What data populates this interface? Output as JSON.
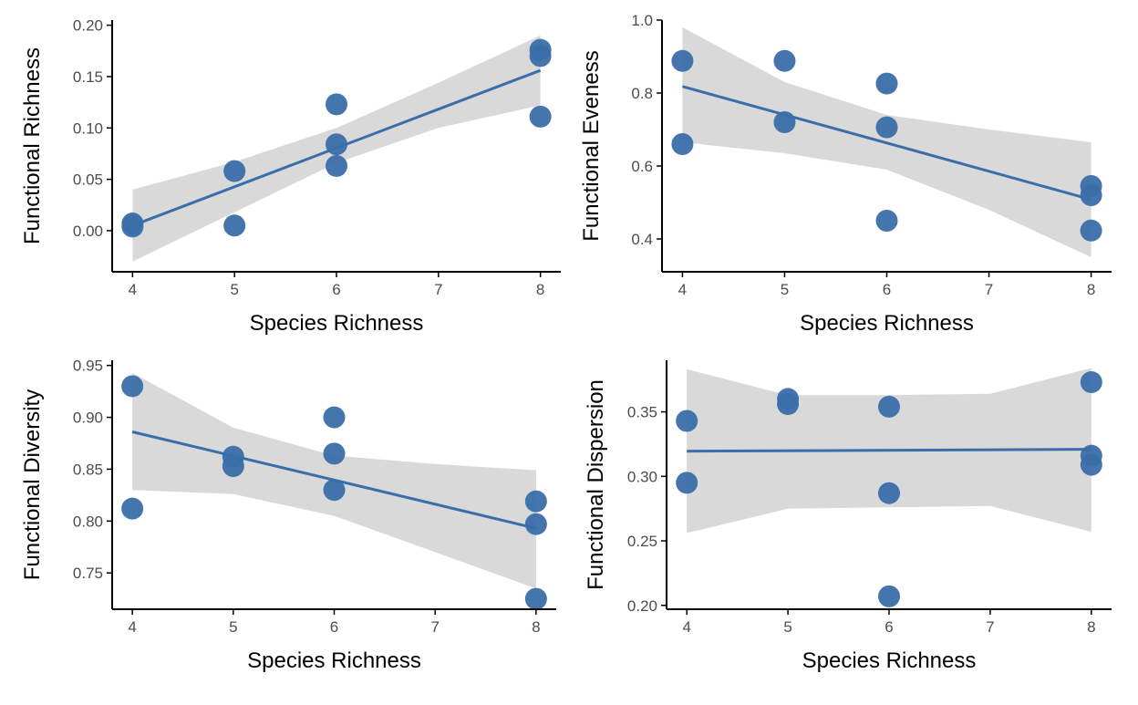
{
  "colors": {
    "point": "#3a6ea9",
    "line": "#3a6ea9",
    "band": "#d9d9d9",
    "axis": "#000000",
    "tick_label": "#4d4d4d"
  },
  "chart_data": [
    {
      "type": "scatter",
      "panel": "top-left",
      "xlabel": "Species Richness",
      "ylabel": "Functional Richness",
      "xlim": [
        3.8,
        8.2
      ],
      "ylim": [
        -0.04,
        0.205
      ],
      "x_ticks": [
        4,
        5,
        6,
        7,
        8
      ],
      "y_ticks": [
        0.0,
        0.05,
        0.1,
        0.15,
        0.2
      ],
      "y_tick_labels": [
        "0.00",
        "0.05",
        "0.10",
        "0.15",
        "0.20"
      ],
      "points": [
        {
          "x": 4,
          "y": 0.007
        },
        {
          "x": 4,
          "y": 0.004
        },
        {
          "x": 5,
          "y": 0.058
        },
        {
          "x": 5,
          "y": 0.005
        },
        {
          "x": 6,
          "y": 0.123
        },
        {
          "x": 6,
          "y": 0.084
        },
        {
          "x": 6,
          "y": 0.063
        },
        {
          "x": 8,
          "y": 0.176
        },
        {
          "x": 8,
          "y": 0.17
        },
        {
          "x": 8,
          "y": 0.111
        }
      ],
      "fit": {
        "x": [
          4,
          8
        ],
        "y": [
          0.005,
          0.156
        ]
      },
      "ci_band": {
        "x": [
          4,
          5,
          6,
          7,
          8
        ],
        "lower": [
          -0.03,
          0.018,
          0.066,
          0.1,
          0.122
        ],
        "upper": [
          0.04,
          0.067,
          0.1,
          0.144,
          0.19
        ]
      },
      "grid": false
    },
    {
      "type": "scatter",
      "panel": "top-right",
      "xlabel": "Species Richness",
      "ylabel": "Functional Eveness",
      "xlim": [
        3.8,
        8.2
      ],
      "ylim": [
        0.31,
        1.0
      ],
      "x_ticks": [
        4,
        5,
        6,
        7,
        8
      ],
      "y_ticks": [
        0.4,
        0.6,
        0.8,
        1.0
      ],
      "y_tick_labels": [
        "0.4",
        "0.6",
        "0.8",
        "1.0"
      ],
      "points": [
        {
          "x": 4,
          "y": 0.888
        },
        {
          "x": 4,
          "y": 0.66
        },
        {
          "x": 5,
          "y": 0.888
        },
        {
          "x": 5,
          "y": 0.72
        },
        {
          "x": 6,
          "y": 0.826
        },
        {
          "x": 6,
          "y": 0.706
        },
        {
          "x": 6,
          "y": 0.45
        },
        {
          "x": 8,
          "y": 0.545
        },
        {
          "x": 8,
          "y": 0.52
        },
        {
          "x": 8,
          "y": 0.423
        }
      ],
      "fit": {
        "x": [
          4,
          8
        ],
        "y": [
          0.818,
          0.508
        ]
      },
      "ci_band": {
        "x": [
          4,
          5,
          6,
          7,
          8
        ],
        "lower": [
          0.665,
          0.635,
          0.59,
          0.48,
          0.35
        ],
        "upper": [
          0.98,
          0.83,
          0.74,
          0.7,
          0.665
        ]
      },
      "grid": false
    },
    {
      "type": "scatter",
      "panel": "bottom-left",
      "xlabel": "Species Richness",
      "ylabel": "Functional Diversity",
      "xlim": [
        3.8,
        8.2
      ],
      "ylim": [
        0.715,
        0.955
      ],
      "x_ticks": [
        4,
        5,
        6,
        7,
        8
      ],
      "y_ticks": [
        0.75,
        0.8,
        0.85,
        0.9,
        0.95
      ],
      "y_tick_labels": [
        "0.75",
        "0.80",
        "0.85",
        "0.90",
        "0.95"
      ],
      "points": [
        {
          "x": 4,
          "y": 0.93
        },
        {
          "x": 4,
          "y": 0.812
        },
        {
          "x": 5,
          "y": 0.862
        },
        {
          "x": 5,
          "y": 0.853
        },
        {
          "x": 6,
          "y": 0.9
        },
        {
          "x": 6,
          "y": 0.865
        },
        {
          "x": 6,
          "y": 0.83
        },
        {
          "x": 8,
          "y": 0.819
        },
        {
          "x": 8,
          "y": 0.797
        },
        {
          "x": 8,
          "y": 0.725
        }
      ],
      "fit": {
        "x": [
          4,
          8
        ],
        "y": [
          0.886,
          0.793
        ]
      },
      "ci_band": {
        "x": [
          4,
          5,
          6,
          7,
          8
        ],
        "lower": [
          0.83,
          0.826,
          0.805,
          0.77,
          0.735
        ],
        "upper": [
          0.943,
          0.89,
          0.863,
          0.855,
          0.849
        ]
      },
      "grid": false
    },
    {
      "type": "scatter",
      "panel": "bottom-right",
      "xlabel": "Species Richness",
      "ylabel": "Functional Dispersion",
      "xlim": [
        3.8,
        8.2
      ],
      "ylim": [
        0.197,
        0.39
      ],
      "x_ticks": [
        4,
        5,
        6,
        7,
        8
      ],
      "y_ticks": [
        0.2,
        0.25,
        0.3,
        0.35
      ],
      "y_tick_labels": [
        "0.20",
        "0.25",
        "0.30",
        "0.35"
      ],
      "points": [
        {
          "x": 4,
          "y": 0.343
        },
        {
          "x": 4,
          "y": 0.295
        },
        {
          "x": 5,
          "y": 0.36
        },
        {
          "x": 5,
          "y": 0.356
        },
        {
          "x": 6,
          "y": 0.354
        },
        {
          "x": 6,
          "y": 0.287
        },
        {
          "x": 6,
          "y": 0.207
        },
        {
          "x": 8,
          "y": 0.373
        },
        {
          "x": 8,
          "y": 0.316
        },
        {
          "x": 8,
          "y": 0.309
        }
      ],
      "fit": {
        "x": [
          4,
          8
        ],
        "y": [
          0.3195,
          0.321
        ]
      },
      "ci_band": {
        "x": [
          4,
          5,
          6,
          7,
          8
        ],
        "lower": [
          0.256,
          0.275,
          0.276,
          0.277,
          0.257
        ],
        "upper": [
          0.383,
          0.363,
          0.363,
          0.364,
          0.384
        ]
      },
      "grid": false
    }
  ]
}
